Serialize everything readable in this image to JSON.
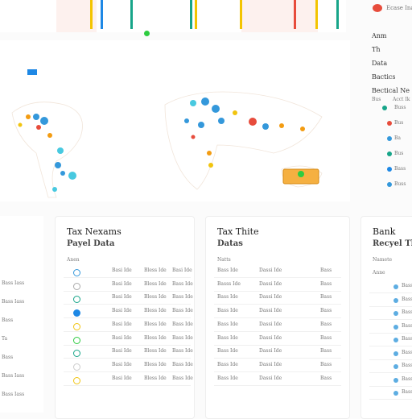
{
  "legend": {
    "label": "Ecase Ina"
  },
  "side_panel": {
    "items": [
      "Anm",
      "Th",
      "Data",
      "Bactics",
      "Bectical Ne"
    ],
    "header": [
      "Bus",
      "Acct Ik"
    ],
    "rows": [
      "Buss",
      "Bus",
      "Ba",
      "Bus",
      "Bass",
      "Buss"
    ]
  },
  "left_strip": [
    "Bass Iass",
    "Bass Iass",
    "Bass",
    "Ta",
    "Bass",
    "Bass Iass",
    "Bass Iass"
  ],
  "cards": [
    {
      "title": "Tax Nexams",
      "subtitle": "Payel Data",
      "column": "Anen",
      "rows": [
        [
          "Basi Ide",
          "Bless Ide",
          "Basi Ide"
        ],
        [
          "Basi Ide",
          "Bless Ide",
          "Bass Ide"
        ],
        [
          "Basi Ide",
          "Bless Ide",
          "Bass Ide"
        ],
        [
          "Basi Ide",
          "Bless Ide",
          "Bass Ide"
        ],
        [
          "Basi Ide",
          "Bless Ide",
          "Bass Ide"
        ],
        [
          "Basi Ide",
          "Bless Ide",
          "Bass Ide"
        ],
        [
          "Basi Ide",
          "Bless Ide",
          "Bass Ide"
        ],
        [
          "Basi Ide",
          "Bless Ide",
          "Bass Ide"
        ],
        [
          "Basi Ide",
          "Bless Ide",
          "Bass Ide"
        ]
      ]
    },
    {
      "title": "Tax Thite",
      "subtitle": "Datas",
      "column": "Natts",
      "rows": [
        [
          "Bass Ide",
          "Dassi Ide",
          "Bass"
        ],
        [
          "Basss Ide",
          "Dassi Ide",
          "Bass"
        ],
        [
          "Bass Ide",
          "Dassi Ide",
          "Bass"
        ],
        [
          "Bass Ide",
          "Dassi Ide",
          "Bass"
        ],
        [
          "Bass Ide",
          "Dassi Ide",
          "Bass"
        ],
        [
          "Bass Ide",
          "Dassi Ide",
          "Bass"
        ],
        [
          "Bass Ide",
          "Dassi Ide",
          "Bass"
        ],
        [
          "Bass Ide",
          "Dassi Ide",
          "Bass"
        ],
        [
          "Bass Ide",
          "Dassi Ide",
          "Bass"
        ]
      ]
    },
    {
      "title": "Bank",
      "subtitle": "Recyel Th",
      "column": "Namete",
      "column2": "Anne",
      "rows": [
        [
          "Bass Ide"
        ],
        [
          "Bass Ide"
        ],
        [
          "Bass Ide"
        ],
        [
          "Bass Ide"
        ],
        [
          "Bass Ide"
        ],
        [
          "Bass Ide"
        ],
        [
          "Bass Ide"
        ],
        [
          "Bass Ide"
        ],
        [
          "Bass Ide"
        ]
      ]
    }
  ]
}
